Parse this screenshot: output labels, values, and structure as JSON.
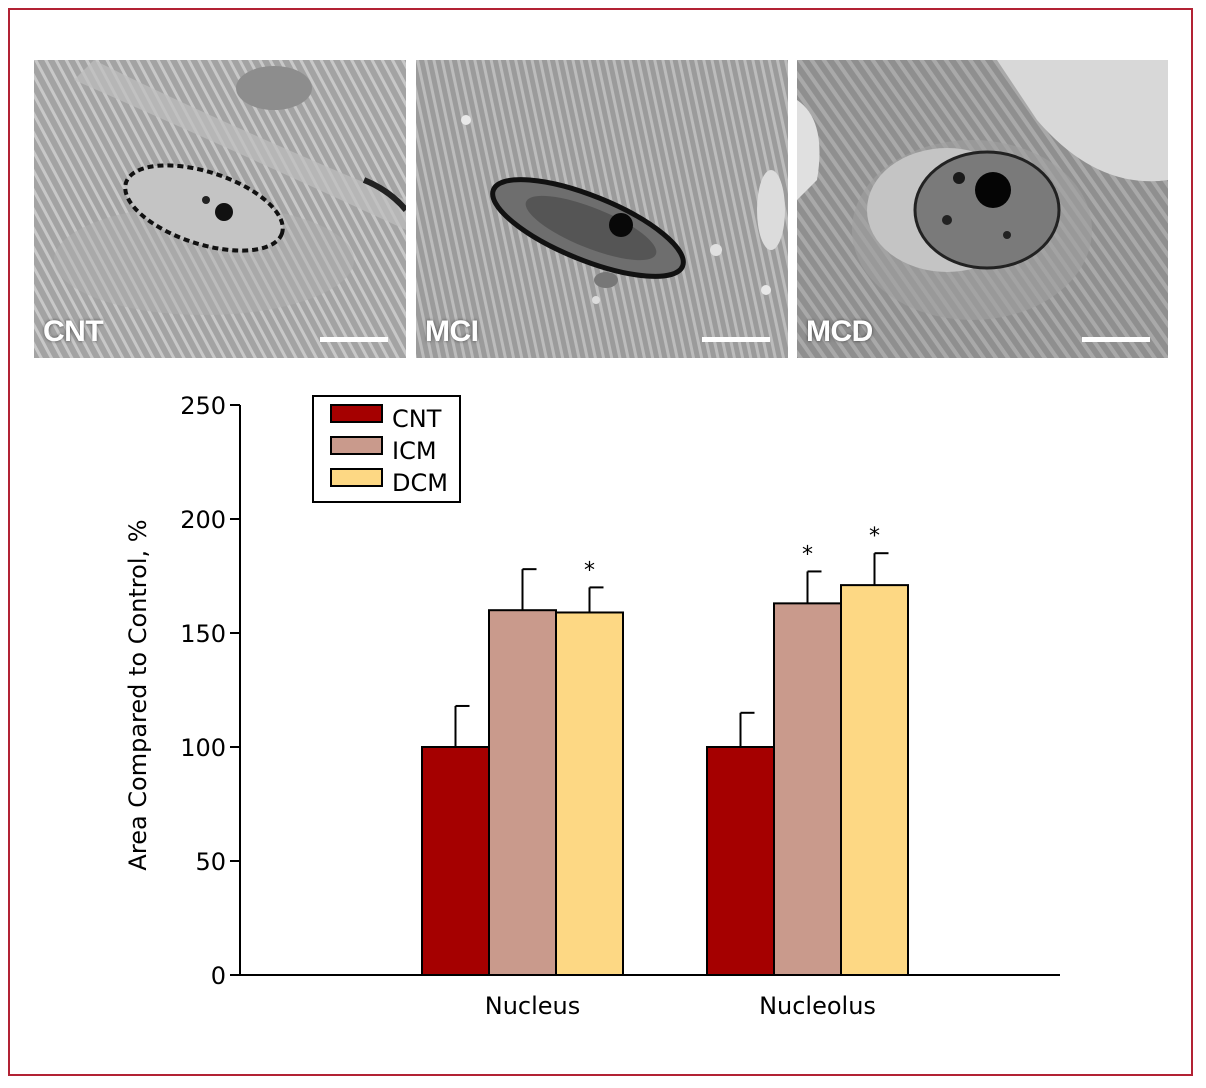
{
  "panels": [
    {
      "label": "CNT"
    },
    {
      "label": "MCI"
    },
    {
      "label": "MCD"
    }
  ],
  "chart_data": {
    "type": "bar",
    "categories": [
      "Nucleus",
      "Nucleolus"
    ],
    "series": [
      {
        "name": "CNT",
        "color": "#a50000",
        "values": [
          100,
          100
        ],
        "errors": [
          18,
          15
        ],
        "significant": [
          false,
          false
        ]
      },
      {
        "name": "ICM",
        "color": "#c99a8c",
        "values": [
          160,
          163
        ],
        "errors": [
          18,
          14
        ],
        "significant": [
          false,
          true
        ]
      },
      {
        "name": "DCM",
        "color": "#fdd884",
        "values": [
          159,
          171
        ],
        "errors": [
          11,
          14
        ],
        "significant": [
          true,
          true
        ]
      }
    ],
    "ylabel": "Area Compared to Control, %",
    "xlabel": "",
    "ylim": [
      0,
      250
    ],
    "yticks": [
      "0",
      "50",
      "100",
      "150",
      "200",
      "250"
    ],
    "significance_marker": "*",
    "legend_position": "top-left",
    "grid": false
  }
}
